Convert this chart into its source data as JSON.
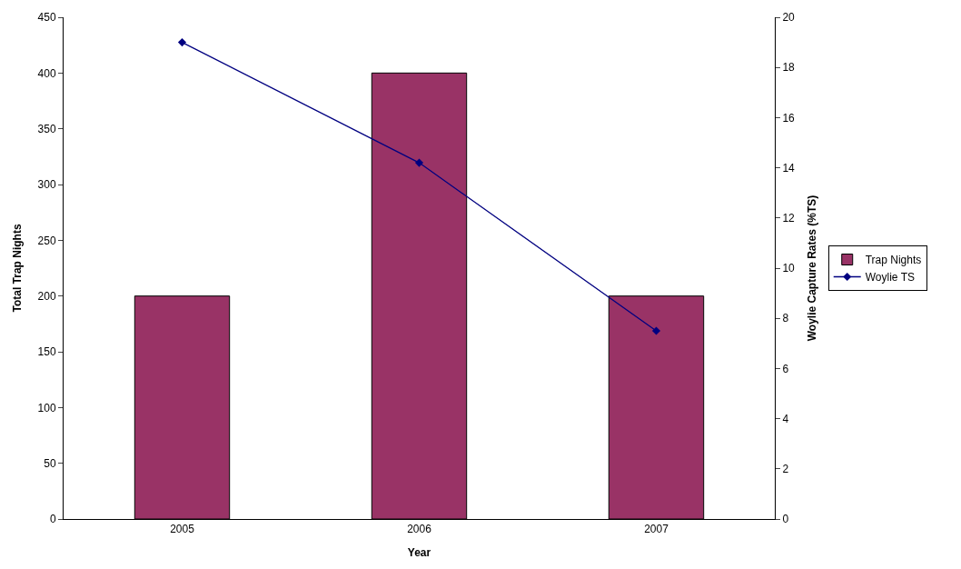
{
  "chart_data": {
    "type": "bar",
    "xlabel": "Year",
    "ylabel": "Total Trap Nights",
    "y2label": "Woylie Capture Rates (%TS)",
    "categories": [
      "2005",
      "2006",
      "2007"
    ],
    "series": [
      {
        "name": "Trap Nights",
        "color": "#993366",
        "values": [
          200,
          400,
          200
        ]
      },
      {
        "name": "Woylie TS",
        "type": "line",
        "axis": "y2",
        "color": "#000080",
        "values": [
          19.0,
          14.2,
          7.5
        ]
      }
    ],
    "ylim": [
      0,
      450
    ],
    "yticks": [
      0,
      50,
      100,
      150,
      200,
      250,
      300,
      350,
      400,
      450
    ],
    "y2lim": [
      0,
      20
    ],
    "y2ticks": [
      0,
      2,
      4,
      6,
      8,
      10,
      12,
      14,
      16,
      18,
      20
    ],
    "marker": "diamond",
    "line_style": "solid",
    "legend": "right"
  }
}
